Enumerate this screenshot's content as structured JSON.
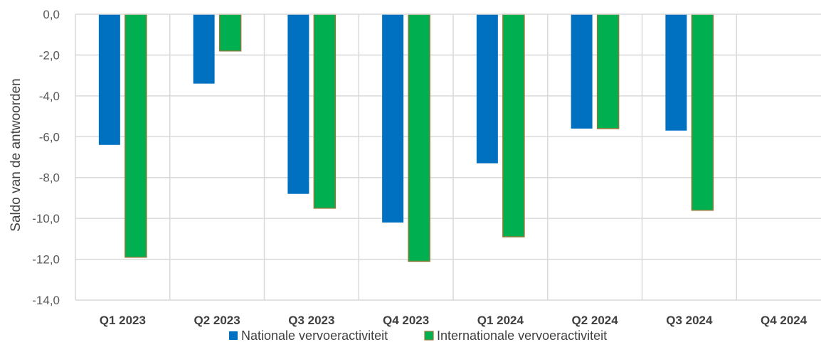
{
  "chart_data": {
    "type": "bar",
    "ylabel": "Saldo van de antwoorden",
    "ylim": [
      -14,
      0
    ],
    "yticks": [
      0,
      -2,
      -4,
      -6,
      -8,
      -10,
      -12,
      -14
    ],
    "ytick_labels": [
      "0,0",
      "-2,0",
      "-4,0",
      "-6,0",
      "-8,0",
      "-10,0",
      "-12,0",
      "-14,0"
    ],
    "categories": [
      "Q1 2023",
      "Q2 2023",
      "Q3 2023",
      "Q4 2023",
      "Q1 2024",
      "Q2 2024",
      "Q3 2024",
      "Q4 2024"
    ],
    "series": [
      {
        "name": "Nationale vervoeractiviteit",
        "color": "#0070C0",
        "values": [
          -6.4,
          -3.4,
          -8.8,
          -10.2,
          -7.3,
          -5.6,
          -5.7,
          null
        ]
      },
      {
        "name": "Internationale vervoeractiviteit",
        "color": "#00B050",
        "border": "#8B7B3A",
        "values": [
          -11.9,
          -1.8,
          -9.5,
          -12.1,
          -10.9,
          -5.6,
          -9.6,
          null
        ]
      }
    ],
    "grid": true,
    "gridlines": "vertical-category-separators",
    "legend": "bottom-center"
  }
}
